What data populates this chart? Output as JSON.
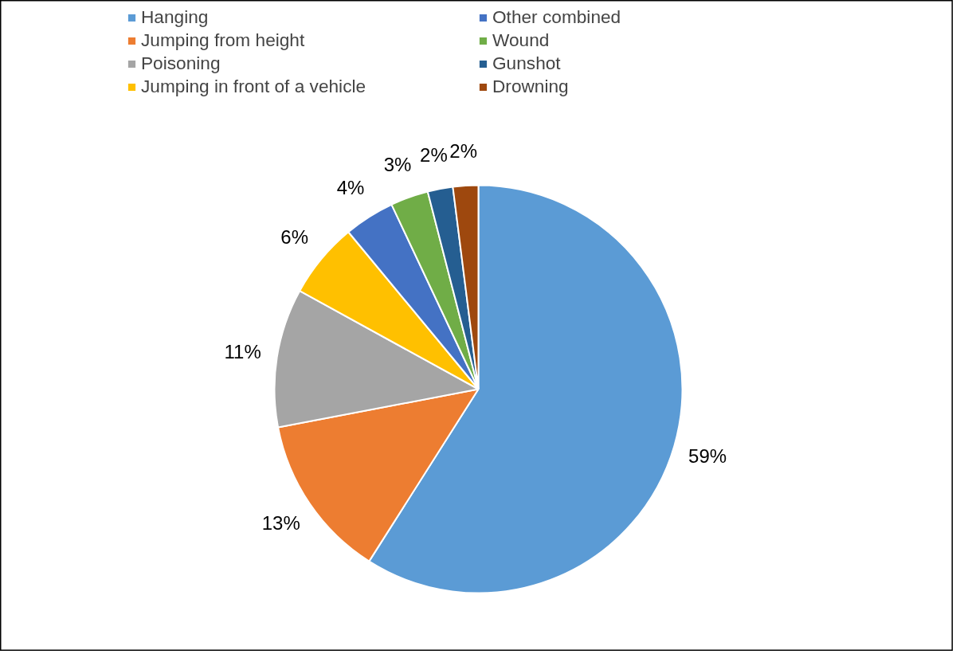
{
  "chart_data": {
    "type": "pie",
    "categories": [
      "Hanging",
      "Jumping from height",
      "Poisoning",
      "Jumping in front of a vehicle",
      "Other combined",
      "Wound",
      "Gunshot",
      "Drowning"
    ],
    "values": [
      59,
      13,
      11,
      6,
      4,
      3,
      2,
      2
    ],
    "value_labels": [
      "59%",
      "13%",
      "11%",
      "6%",
      "4%",
      "3%",
      "2%",
      "2%"
    ],
    "colors": [
      "#5b9bd5",
      "#ed7d31",
      "#a5a5a5",
      "#ffc000",
      "#4472c4",
      "#70ad47",
      "#255e91",
      "#9e480e"
    ],
    "legend": "top"
  }
}
